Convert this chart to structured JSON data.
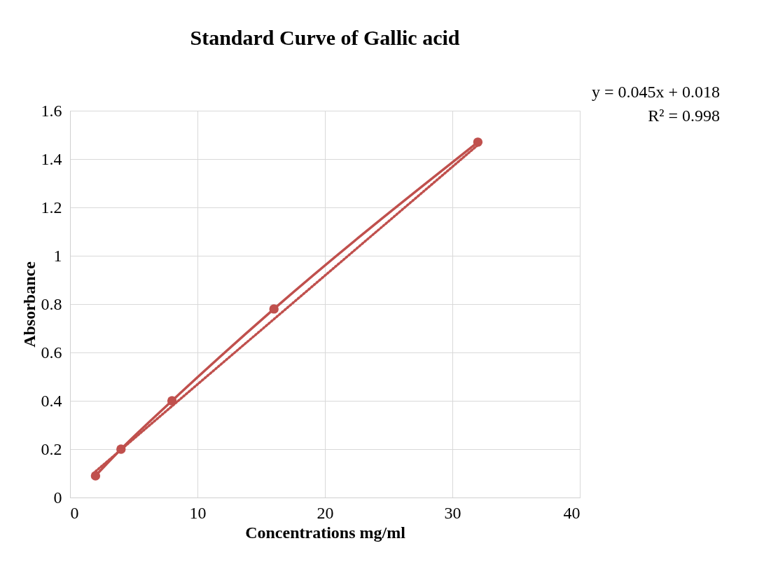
{
  "chart_data": {
    "type": "line",
    "title": "Standard Curve of Gallic acid",
    "xlabel": "Concentrations mg/ml",
    "ylabel": "Absorbance",
    "x": [
      2,
      4,
      8,
      16,
      32
    ],
    "series": [
      {
        "color": "#c0504d",
        "values": [
          0.09,
          0.2,
          0.4,
          0.78,
          1.47
        ],
        "marker": "circle",
        "line_style": "solid"
      },
      {
        "type": "line",
        "color": "#c0504d",
        "x": [
          2,
          32
        ],
        "values": [
          0.108,
          1.458
        ],
        "marker": "none",
        "line_style": "dotted"
      }
    ],
    "xlim": [
      0,
      40
    ],
    "xticks": [
      0,
      10,
      20,
      30,
      40
    ],
    "ylim": [
      0,
      1.6
    ],
    "yticks": [
      0,
      0.2,
      0.4,
      0.6,
      0.8,
      1,
      1.2,
      1.4,
      1.6
    ],
    "grid": true,
    "annotations": [
      "y = 0.045x + 0.018",
      "R² = 0.998"
    ]
  }
}
